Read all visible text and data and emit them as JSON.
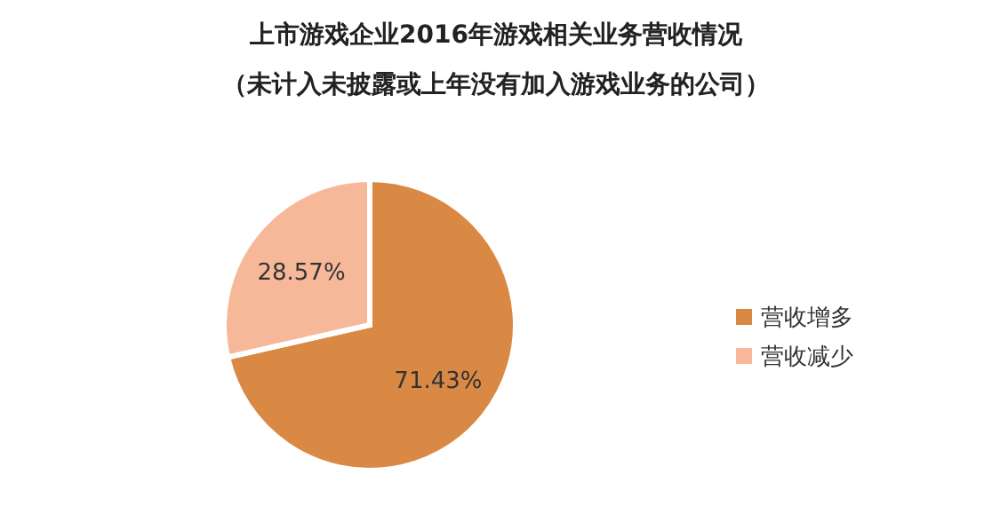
{
  "chart_data": {
    "type": "pie",
    "title": "上市游戏企业2016年游戏相关业务营收情况",
    "subtitle": "（未计入未披露或上年没有加入游戏业务的公司）",
    "categories": [
      "营收增多",
      "营收减少"
    ],
    "values": [
      71.43,
      28.57
    ],
    "colors": [
      "#d98944",
      "#f6b899"
    ],
    "value_labels": [
      "71.43%",
      "28.57%"
    ],
    "legend": "right"
  }
}
